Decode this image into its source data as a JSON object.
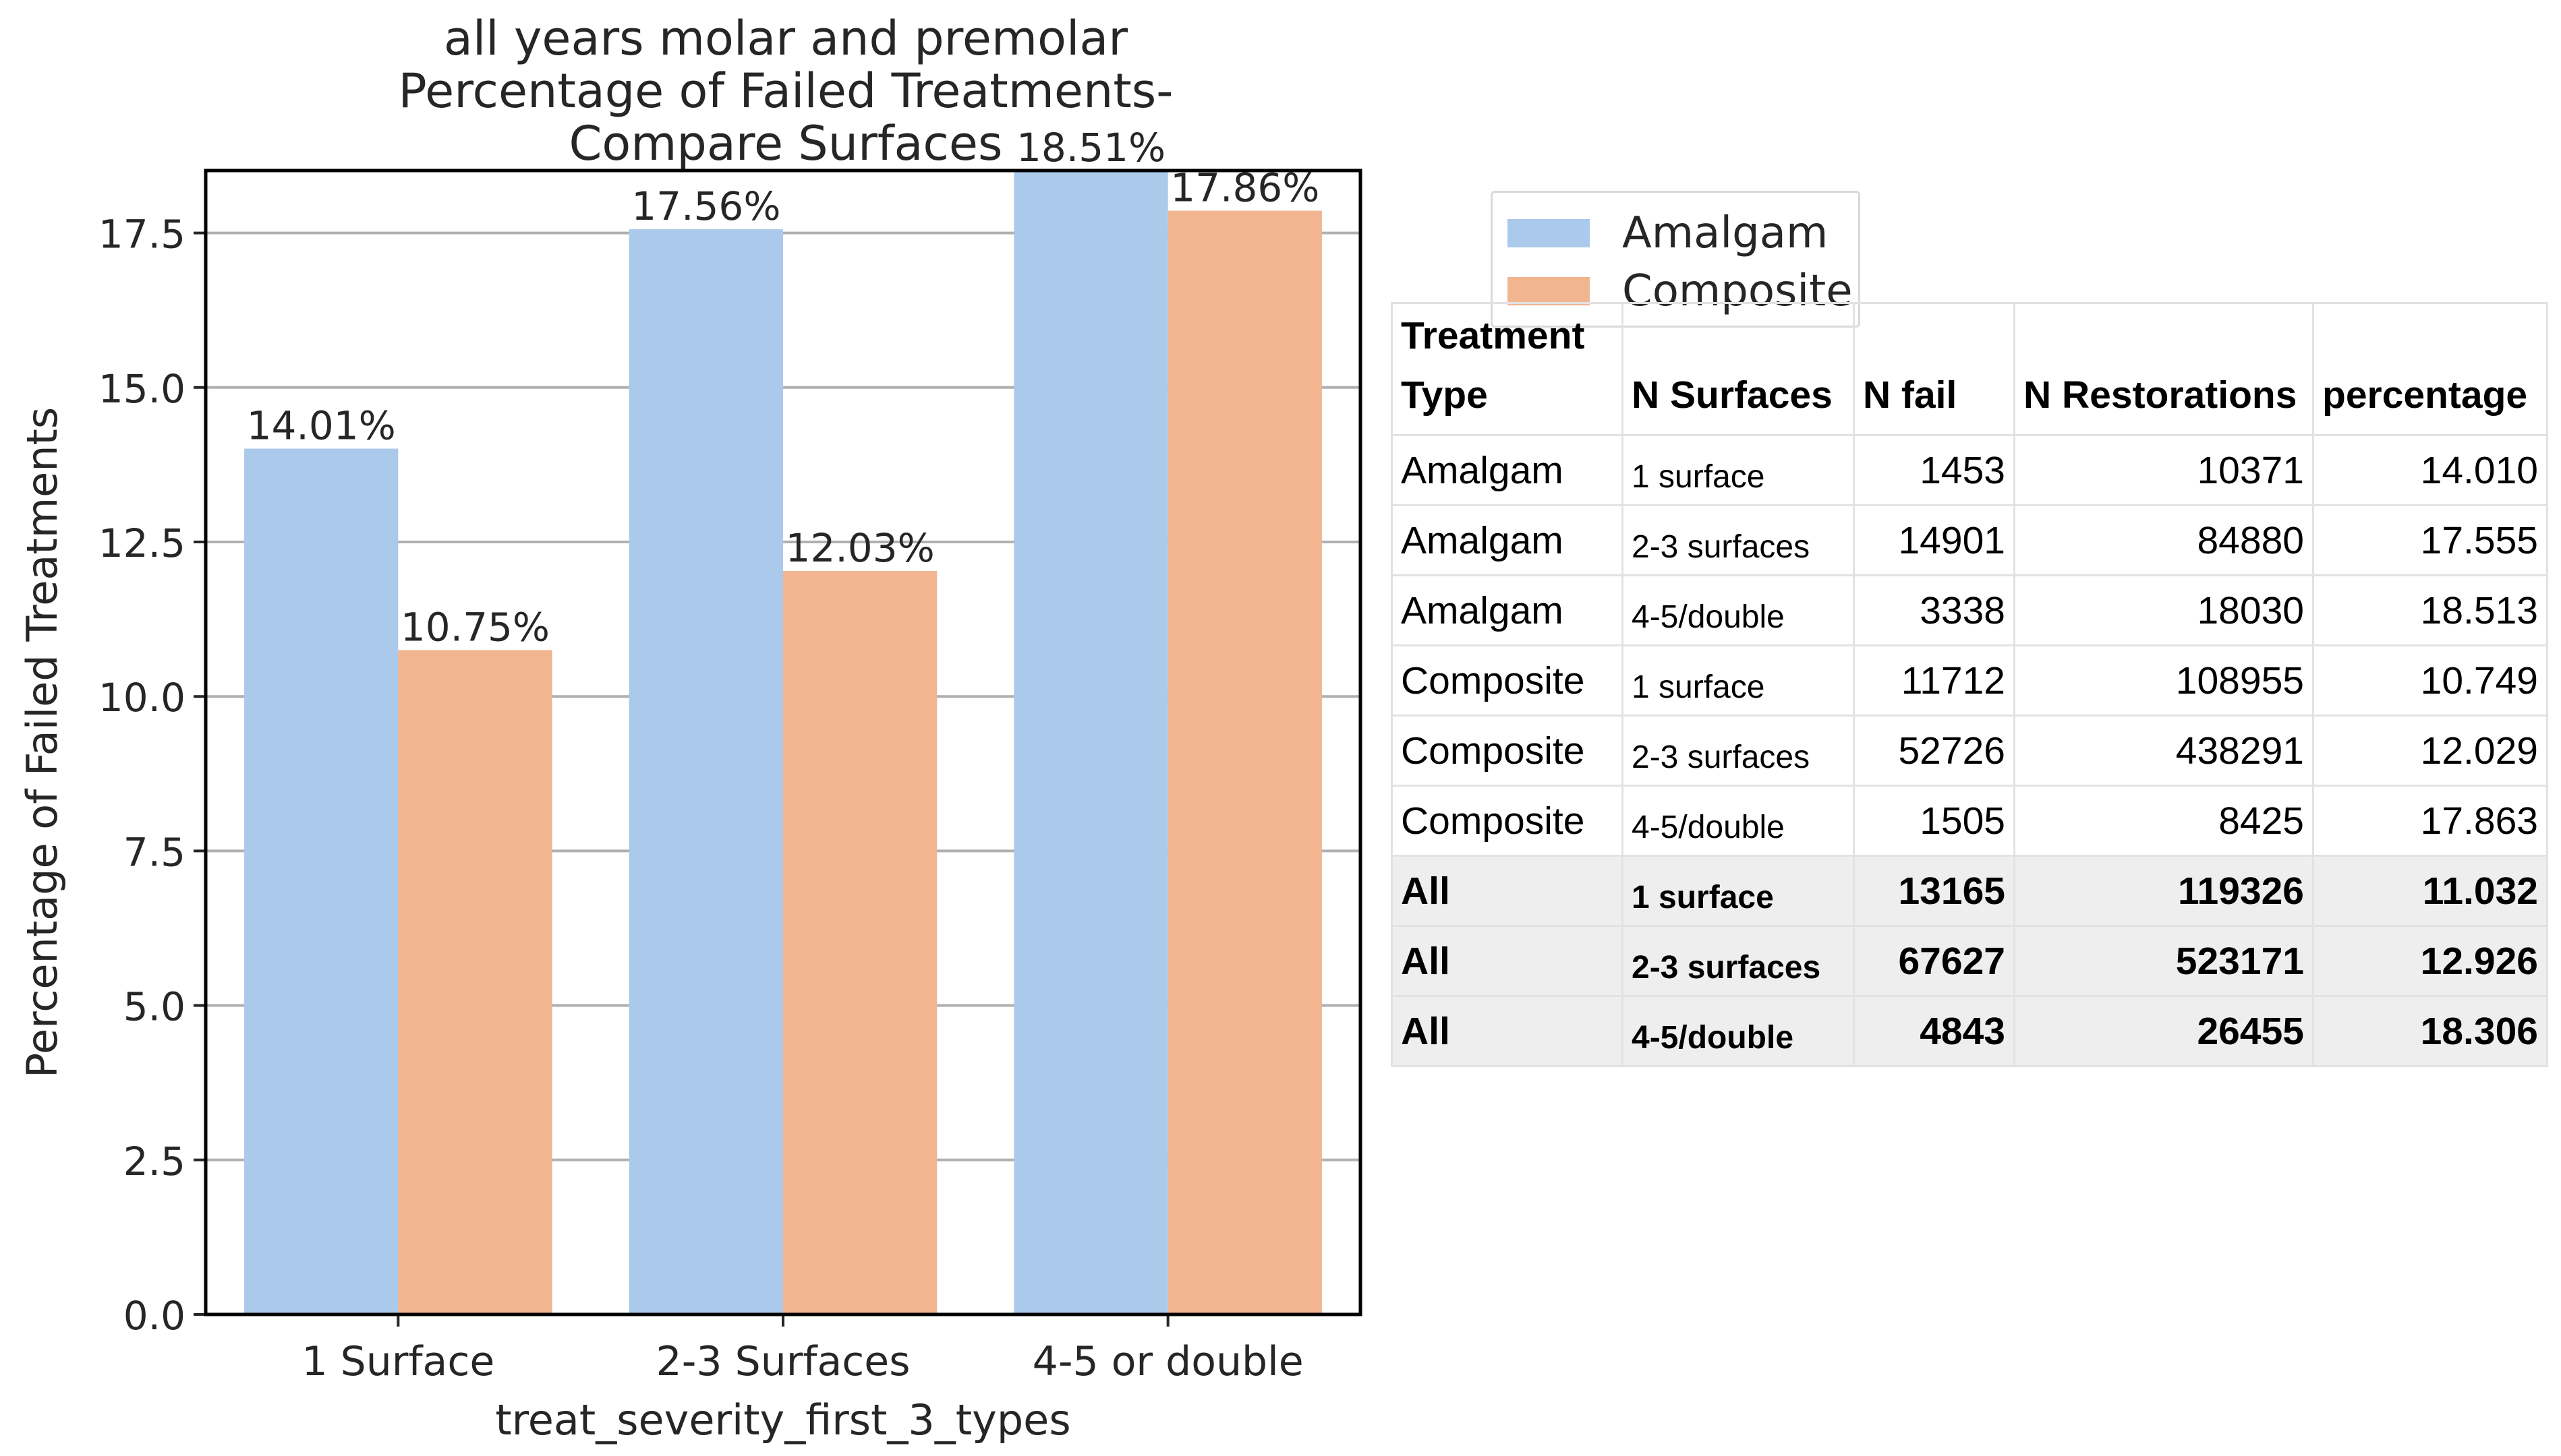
{
  "chart_data": {
    "type": "bar",
    "title": [
      "all years molar and premolar",
      "Percentage of Failed Treatments-",
      "Compare Surfaces"
    ],
    "xlabel": "treat_severity_first_3_types",
    "ylabel": "Percentage of Failed Treatments",
    "categories": [
      "1 Surface",
      "2-3 Surfaces",
      "4-5 or double"
    ],
    "ylim": [
      0,
      18.51
    ],
    "yticks": [
      0.0,
      2.5,
      5.0,
      7.5,
      10.0,
      12.5,
      15.0,
      17.5
    ],
    "ytick_labels": [
      "0.0",
      "2.5",
      "5.0",
      "7.5",
      "10.0",
      "12.5",
      "15.0",
      "17.5"
    ],
    "grid": "horizontal",
    "legend_position": "right of chart, above table",
    "series": [
      {
        "name": "Amalgam",
        "color": "#abc9eb",
        "values": [
          14.01,
          17.56,
          18.51
        ],
        "labels": [
          "14.01%",
          "17.56%",
          "18.51%"
        ]
      },
      {
        "name": "Composite",
        "color": "#f1b590",
        "values": [
          10.75,
          12.03,
          17.86
        ],
        "labels": [
          "10.75%",
          "12.03%",
          "17.86%"
        ]
      }
    ]
  },
  "table": {
    "headers": [
      "Treatment\nType",
      "N Surfaces",
      "N fail",
      "N Restorations",
      "percentage"
    ],
    "rows": [
      [
        "Amalgam",
        "1 surface",
        "1453",
        "10371",
        "14.010"
      ],
      [
        "Amalgam",
        "2-3 surfaces",
        "14901",
        "84880",
        "17.555"
      ],
      [
        "Amalgam",
        "4-5/double",
        "3338",
        "18030",
        "18.513"
      ],
      [
        "Composite",
        "1 surface",
        "11712",
        "108955",
        "10.749"
      ],
      [
        "Composite",
        "2-3 surfaces",
        "52726",
        "438291",
        "12.029"
      ],
      [
        "Composite",
        "4-5/double",
        "1505",
        "8425",
        "17.863"
      ],
      [
        "All",
        "1 surface",
        "13165",
        "119326",
        "11.032"
      ],
      [
        "All",
        "2-3 surfaces",
        "67627",
        "523171",
        "12.926"
      ],
      [
        "All",
        "4-5/double",
        "4843",
        "26455",
        "18.306"
      ]
    ],
    "total_rows": [
      6,
      7,
      8
    ],
    "total_row_color": "#eeeeee"
  }
}
